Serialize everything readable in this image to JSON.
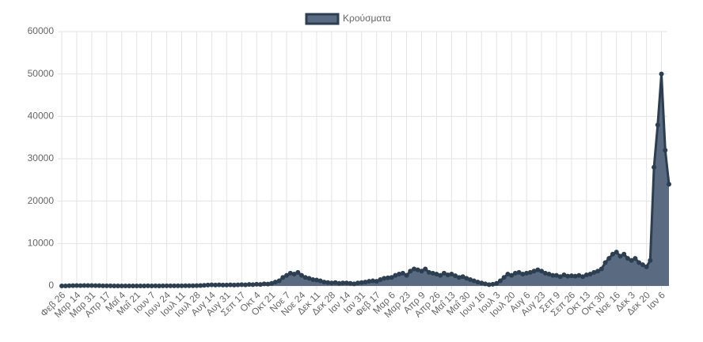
{
  "chart_data": {
    "type": "line",
    "categories": [
      "Φεβ 26",
      null,
      null,
      null,
      "Μαρ 14",
      null,
      null,
      null,
      "Μαρ 31",
      null,
      null,
      null,
      "Απρ 17",
      null,
      null,
      null,
      "Μαΐ 4",
      null,
      null,
      null,
      "Μαΐ 21",
      null,
      null,
      null,
      "Ιουν 7",
      null,
      null,
      null,
      "Ιουν 24",
      null,
      null,
      null,
      "Ιουλ 11",
      null,
      null,
      null,
      "Ιουλ 28",
      null,
      null,
      null,
      "Αυγ 14",
      null,
      null,
      null,
      "Αυγ 31",
      null,
      null,
      null,
      "Σεπ 17",
      null,
      null,
      null,
      "Οκτ 4",
      null,
      null,
      null,
      "Οκτ 21",
      null,
      null,
      null,
      "Νοε 7",
      null,
      null,
      null,
      "Νοε 24",
      null,
      null,
      null,
      "Δεκ 11",
      null,
      null,
      null,
      "Δεκ 28",
      null,
      null,
      null,
      "Ιαν 14",
      null,
      null,
      null,
      "Ιαν 31",
      null,
      null,
      null,
      "Φεβ 17",
      null,
      null,
      null,
      "Μαρ 6",
      null,
      null,
      null,
      "Μαρ 23",
      null,
      null,
      null,
      "Απρ 9",
      null,
      null,
      null,
      "Απρ 26",
      null,
      null,
      null,
      "Μαΐ 13",
      null,
      null,
      null,
      "Μαΐ 30",
      null,
      null,
      null,
      "Ιουν 16",
      null,
      null,
      null,
      "Ιουλ 3",
      null,
      null,
      null,
      "Ιουλ 20",
      null,
      null,
      null,
      "Αυγ 6",
      null,
      null,
      null,
      "Αυγ 23",
      null,
      null,
      null,
      "Σεπ 9",
      null,
      null,
      null,
      "Σεπ 26",
      null,
      null,
      null,
      "Οκτ 13",
      null,
      null,
      null,
      "Οκτ 30",
      null,
      null,
      null,
      "Νοε 16",
      null,
      null,
      null,
      "Δεκ 3",
      null,
      null,
      null,
      "Δεκ 20",
      null,
      null,
      null,
      "Ιαν 6",
      null,
      null
    ],
    "series": [
      {
        "name": "Κρούσματα",
        "color": "#2c3e50",
        "fill": "#5a6a80",
        "values": [
          3,
          10,
          50,
          80,
          100,
          80,
          90,
          90,
          100,
          80,
          60,
          30,
          20,
          15,
          10,
          10,
          10,
          10,
          5,
          10,
          10,
          5,
          10,
          15,
          10,
          15,
          10,
          20,
          20,
          30,
          25,
          30,
          30,
          40,
          35,
          45,
          60,
          100,
          150,
          200,
          250,
          200,
          250,
          200,
          200,
          250,
          200,
          250,
          300,
          250,
          350,
          300,
          400,
          350,
          500,
          450,
          600,
          900,
          1200,
          2000,
          2500,
          3000,
          2800,
          3200,
          2500,
          2000,
          1800,
          1500,
          1400,
          1200,
          900,
          800,
          700,
          800,
          600,
          700,
          700,
          600,
          500,
          700,
          800,
          900,
          1100,
          1200,
          1100,
          1500,
          1800,
          1900,
          2000,
          2500,
          2800,
          3000,
          2500,
          3500,
          4000,
          3800,
          3500,
          4000,
          3200,
          3000,
          2800,
          2500,
          3000,
          2600,
          2800,
          2400,
          2000,
          2200,
          1800,
          1500,
          1200,
          900,
          700,
          500,
          300,
          400,
          600,
          1200,
          2000,
          2800,
          2500,
          3000,
          3200,
          2800,
          3000,
          3200,
          3500,
          3800,
          3500,
          3000,
          2800,
          2500,
          2500,
          2200,
          2600,
          2300,
          2400,
          2300,
          2500,
          2200,
          2600,
          2800,
          3200,
          3500,
          4000,
          5500,
          6500,
          7500,
          8000,
          7000,
          7500,
          6500,
          6000,
          6500,
          5500,
          5000,
          4500,
          6000,
          28000,
          38000,
          50000,
          32000,
          24000
        ]
      }
    ],
    "ylim": [
      0,
      60000
    ],
    "yticks": [
      0,
      10000,
      20000,
      30000,
      40000,
      50000,
      60000
    ],
    "grid": true,
    "legend": "top"
  }
}
